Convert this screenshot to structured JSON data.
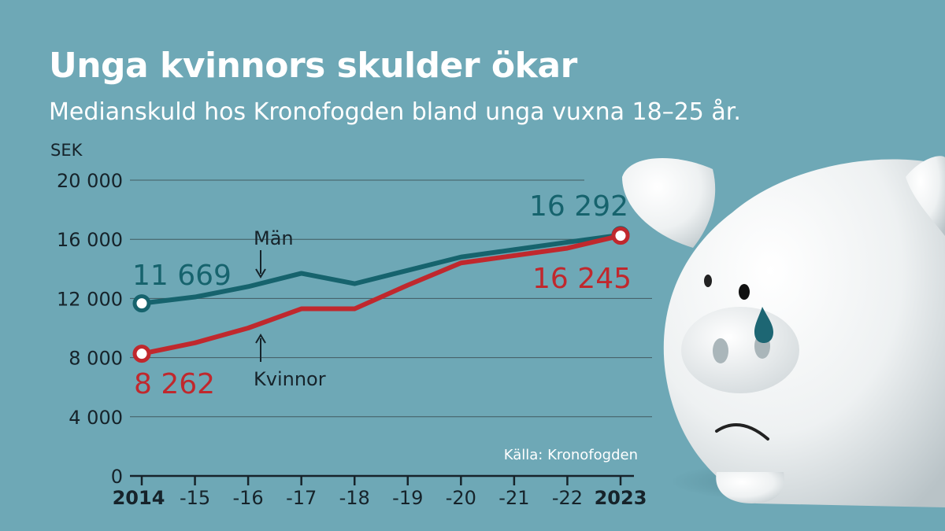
{
  "header": {
    "title": "Unga kvinnors skulder ökar",
    "subtitle": "Medianskuld hos Kronofogden bland unga vuxna 18–25 år."
  },
  "colors": {
    "background": "#6ea8b6",
    "men": "#16636d",
    "women": "#c0282d",
    "grid": "#2f3a3d",
    "text": "#16232a",
    "white": "#ffffff"
  },
  "chart_data": {
    "type": "line",
    "title": "Unga kvinnors skulder ökar",
    "subtitle": "Medianskuld hos Kronofogden bland unga vuxna 18–25 år.",
    "ylabel": "SEK",
    "xlabel": "",
    "x": [
      2014,
      2015,
      2016,
      2017,
      2018,
      2019,
      2020,
      2021,
      2022,
      2023
    ],
    "xticks": [
      "2014",
      "-15",
      "-16",
      "-17",
      "-18",
      "-19",
      "-20",
      "-21",
      "-22",
      "2023"
    ],
    "yticks": [
      0,
      4000,
      8000,
      12000,
      16000,
      20000
    ],
    "ytick_labels": [
      "0",
      "4 000",
      "8 000",
      "12 000",
      "16 000",
      "20 000"
    ],
    "ylim": [
      0,
      20000
    ],
    "grid": true,
    "series": [
      {
        "name": "Män",
        "key": "men",
        "values": [
          11669,
          12100,
          12800,
          13700,
          13000,
          13900,
          14800,
          15300,
          15800,
          16292
        ],
        "start_label": "11 669",
        "end_label": "16 292"
      },
      {
        "name": "Kvinnor",
        "key": "women",
        "values": [
          8262,
          9000,
          10000,
          11300,
          11300,
          12900,
          14400,
          14900,
          15400,
          16245
        ],
        "start_label": "8 262",
        "end_label": "16 245"
      }
    ],
    "source": "Källa: Kronofogden"
  },
  "illustration": {
    "subject": "crying-piggy-bank"
  }
}
